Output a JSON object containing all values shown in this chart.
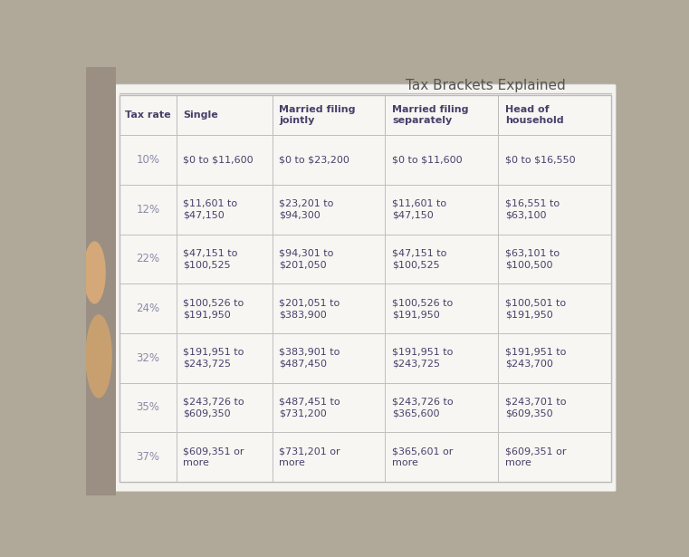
{
  "title": "Tax Brackets Explained",
  "title_fontsize": 11,
  "columns": [
    "Tax rate",
    "Single",
    "Married filing\njointly",
    "Married filing\nseparately",
    "Head of\nhousehold"
  ],
  "rows": [
    {
      "rate": "10%",
      "single": "$0 to $11,600",
      "mfj": "$0 to $23,200",
      "mfs": "$0 to $11,600",
      "hoh": "$0 to $16,550"
    },
    {
      "rate": "12%",
      "single": "$11,601 to\n$47,150",
      "mfj": "$23,201 to\n$94,300",
      "mfs": "$11,601 to\n$47,150",
      "hoh": "$16,551 to\n$63,100"
    },
    {
      "rate": "22%",
      "single": "$47,151 to\n$100,525",
      "mfj": "$94,301 to\n$201,050",
      "mfs": "$47,151 to\n$100,525",
      "hoh": "$63,101 to\n$100,500"
    },
    {
      "rate": "24%",
      "single": "$100,526 to\n$191,950",
      "mfj": "$201,051 to\n$383,900",
      "mfs": "$100,526 to\n$191,950",
      "hoh": "$100,501 to\n$191,950"
    },
    {
      "rate": "32%",
      "single": "$191,951 to\n$243,725",
      "mfj": "$383,901 to\n$487,450",
      "mfs": "$191,951 to\n$243,725",
      "hoh": "$191,951 to\n$243,700"
    },
    {
      "rate": "35%",
      "single": "$243,726 to\n$609,350",
      "mfj": "$487,451 to\n$731,200",
      "mfs": "$243,726 to\n$365,600",
      "hoh": "$243,701 to\n$609,350"
    },
    {
      "rate": "37%",
      "single": "$609,351 or\nmore",
      "mfj": "$731,201 or\nmore",
      "mfs": "$365,601 or\nmore",
      "hoh": "$609,351 or\nmore"
    }
  ],
  "bg_color": "#b0a898",
  "table_bg": "#f0ede8",
  "header_text_color": "#4a3f6b",
  "cell_text_color": "#4a3f6b",
  "rate_text_color": "#8a8aaa",
  "grid_color": "#bbbbbb",
  "title_color": "#555555",
  "hand_color": "#c8a070"
}
